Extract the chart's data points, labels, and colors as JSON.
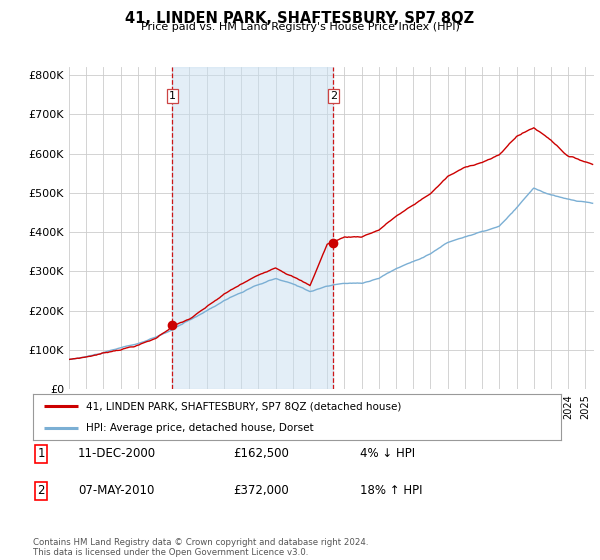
{
  "title": "41, LINDEN PARK, SHAFTESBURY, SP7 8QZ",
  "subtitle": "Price paid vs. HM Land Registry's House Price Index (HPI)",
  "ylabel_ticks": [
    "£0",
    "£100K",
    "£200K",
    "£300K",
    "£400K",
    "£500K",
    "£600K",
    "£700K",
    "£800K"
  ],
  "ytick_values": [
    0,
    100000,
    200000,
    300000,
    400000,
    500000,
    600000,
    700000,
    800000
  ],
  "ylim": [
    0,
    820000
  ],
  "xlim_start": 1995.0,
  "xlim_end": 2025.5,
  "transaction1_x": 2001.0,
  "transaction1_y": 162500,
  "transaction2_x": 2010.36,
  "transaction2_y": 372000,
  "legend_line1": "41, LINDEN PARK, SHAFTESBURY, SP7 8QZ (detached house)",
  "legend_line2": "HPI: Average price, detached house, Dorset",
  "annotation1_date": "11-DEC-2000",
  "annotation1_price": "£162,500",
  "annotation1_hpi": "4% ↓ HPI",
  "annotation2_date": "07-MAY-2010",
  "annotation2_price": "£372,000",
  "annotation2_hpi": "18% ↑ HPI",
  "footer": "Contains HM Land Registry data © Crown copyright and database right 2024.\nThis data is licensed under the Open Government Licence v3.0.",
  "line_color_red": "#cc0000",
  "line_color_blue": "#7bafd4",
  "fill_color_blue": "#c8dff0",
  "dashed_line_color": "#cc0000",
  "background_color": "#ffffff",
  "plot_background": "#ffffff",
  "grid_color": "#cccccc"
}
